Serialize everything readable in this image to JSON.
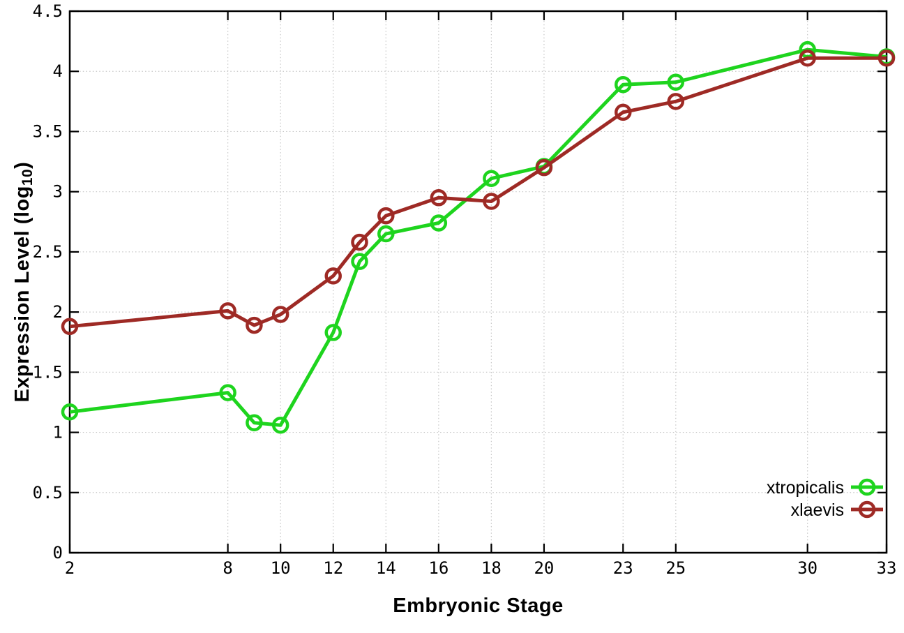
{
  "chart_data": {
    "type": "line",
    "title": "",
    "xlabel": "Embryonic Stage",
    "ylabel": {
      "main": "Expression Level (log",
      "sub": "10",
      "end": ")"
    },
    "x": [
      2,
      8,
      9,
      10,
      12,
      13,
      14,
      16,
      18,
      20,
      23,
      25,
      30,
      33
    ],
    "series": [
      {
        "name": "xtropicalis",
        "color": "#1ed41e",
        "values": [
          1.17,
          1.33,
          1.08,
          1.06,
          1.83,
          2.42,
          2.65,
          2.74,
          3.11,
          3.21,
          3.89,
          3.91,
          4.18,
          4.12
        ]
      },
      {
        "name": "xlaevis",
        "color": "#9e2a25",
        "values": [
          1.88,
          2.01,
          1.89,
          1.98,
          2.3,
          2.58,
          2.8,
          2.95,
          2.92,
          3.2,
          3.66,
          3.75,
          4.11,
          4.11
        ]
      }
    ],
    "xlim": [
      2,
      33
    ],
    "ylim": [
      0,
      4.5
    ],
    "xticks": [
      2,
      8,
      10,
      12,
      14,
      16,
      18,
      20,
      23,
      25,
      30,
      33
    ],
    "xtick_labels": [
      "2",
      "8",
      "10",
      "12",
      "14",
      "16",
      "18",
      "20",
      "23",
      "25",
      "30",
      "33"
    ],
    "yticks": [
      0,
      0.5,
      1,
      1.5,
      2,
      2.5,
      3,
      3.5,
      4,
      4.5
    ],
    "ytick_labels": [
      "0",
      "0.5",
      "1",
      "1.5",
      "2",
      "2.5",
      "3",
      "3.5",
      "4",
      "4.5"
    ],
    "grid": true,
    "grid_style": "dotted",
    "legend_position": "inside-bottom-right",
    "marker": "open-circle",
    "colors": {
      "border": "#000000",
      "grid": "#c6c6c6",
      "text": "#000000",
      "background": "#ffffff"
    }
  }
}
